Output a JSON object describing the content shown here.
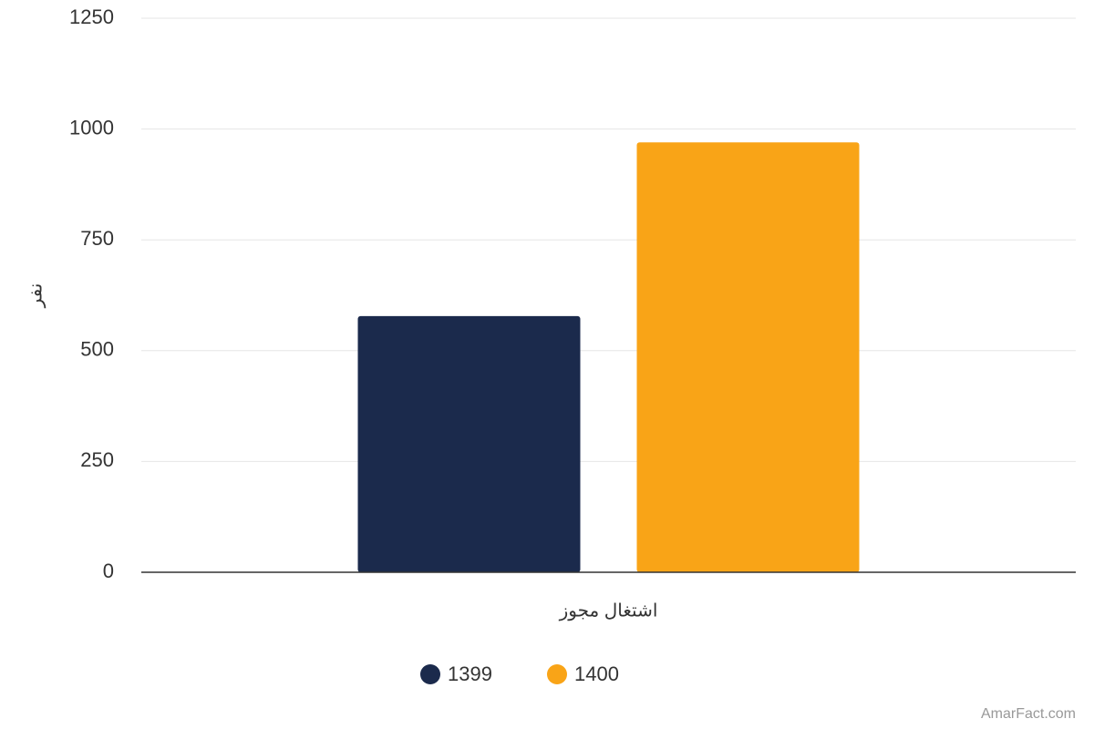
{
  "chart_data": {
    "type": "bar",
    "categories": [
      "اشتغال مجوز"
    ],
    "series": [
      {
        "name": "1399",
        "color": "#1b2a4c",
        "values": [
          578
        ]
      },
      {
        "name": "1400",
        "color": "#f9a417",
        "values": [
          970
        ]
      }
    ],
    "ylabel": "نفر",
    "ylim": [
      0,
      1250
    ],
    "yticks": [
      0,
      250,
      500,
      750,
      1000,
      1250
    ],
    "grid": true,
    "legend": "bottom",
    "credit": "AmarFact.com"
  }
}
